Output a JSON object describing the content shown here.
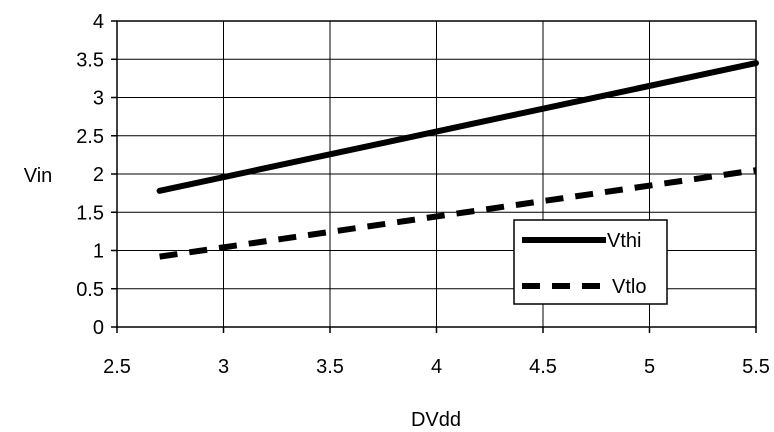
{
  "chart_data": {
    "type": "line",
    "title": "",
    "xlabel": "DVdd",
    "ylabel": "Vin",
    "xlim": [
      2.5,
      5.5
    ],
    "ylim": [
      0,
      4
    ],
    "x_ticks": [
      "2.5",
      "3",
      "3.5",
      "4",
      "4.5",
      "5",
      "5.5"
    ],
    "y_ticks": [
      "0",
      "0.5",
      "1",
      "1.5",
      "2",
      "2.5",
      "3",
      "3.5",
      "4"
    ],
    "grid": true,
    "legend_position": "bottom-right",
    "series": [
      {
        "name": "Vthi",
        "style": "solid",
        "color": "#000000",
        "x": [
          2.7,
          5.5
        ],
        "y": [
          1.78,
          3.45
        ]
      },
      {
        "name": "Vtlo",
        "style": "dashed",
        "color": "#000000",
        "x": [
          2.7,
          5.5
        ],
        "y": [
          0.92,
          2.05
        ]
      }
    ]
  }
}
